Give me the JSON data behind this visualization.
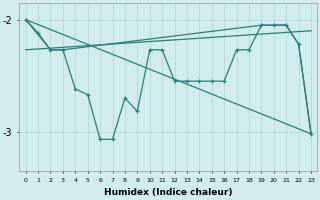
{
  "background_color": "#d0ecec",
  "line_color": "#2d7d78",
  "grid_color": "#b8d8d8",
  "xlabel": "Humidex (Indice chaleur)",
  "ytick_labels": [
    "-2",
    "-3"
  ],
  "ytick_values": [
    -2.0,
    -3.0
  ],
  "xlim": [
    -0.5,
    23.5
  ],
  "ylim": [
    -3.35,
    -1.85
  ],
  "x_ticks": [
    0,
    1,
    2,
    3,
    4,
    5,
    6,
    7,
    8,
    9,
    10,
    11,
    12,
    13,
    14,
    15,
    16,
    17,
    18,
    19,
    20,
    21,
    22,
    23
  ],
  "series_jagged": {
    "x": [
      0,
      1,
      2,
      3,
      4,
      5,
      6,
      7,
      8,
      9,
      10,
      11,
      12,
      13,
      14,
      15,
      16,
      17,
      18,
      19,
      20,
      21,
      22,
      23
    ],
    "y": [
      -2.0,
      -2.12,
      -2.27,
      -2.27,
      -2.62,
      -2.67,
      -3.07,
      -3.07,
      -2.7,
      -2.82,
      -2.27,
      -2.27,
      -2.55,
      -2.55,
      -2.55,
      -2.55,
      -2.55,
      -2.27,
      -2.27,
      -2.05,
      -2.05,
      -2.05,
      -2.22,
      -3.02
    ]
  },
  "series_upper": {
    "x": [
      0,
      23
    ],
    "y": [
      -2.27,
      -2.1
    ]
  },
  "series_diagonal": {
    "x": [
      0,
      23
    ],
    "y": [
      -2.0,
      -3.02
    ]
  },
  "series_envelope_top": {
    "x": [
      0,
      2,
      3,
      19,
      20,
      21,
      22,
      23
    ],
    "y": [
      -2.0,
      -2.27,
      -2.27,
      -2.05,
      -2.05,
      -2.05,
      -2.22,
      -3.02
    ]
  }
}
